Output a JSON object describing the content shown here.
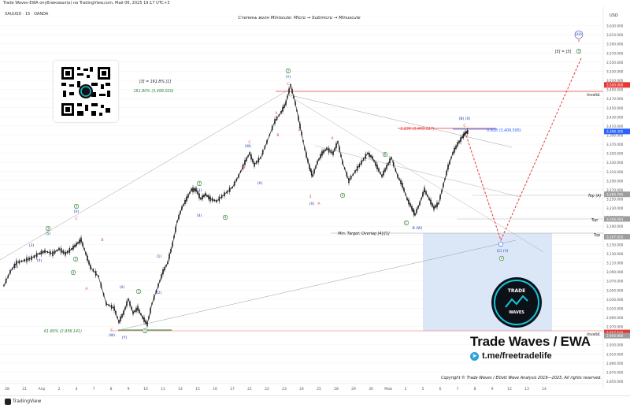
{
  "header": {
    "info": "Trade Waves-EWA опубликовал(а) на TradingView.com, Май 06, 2025 19:17 UTC+3",
    "symbol": "XAUUSD · 15 · OANDA",
    "currency": "USD"
  },
  "chart_title": "Степень волн Miniscule: Micro → Submicro → Minuscule",
  "chart_data": {
    "type": "line",
    "series": [
      {
        "values": [
          [
            0,
            3060
          ],
          [
            8,
            3090
          ],
          [
            16,
            3110
          ],
          [
            26,
            3115
          ],
          [
            35,
            3120
          ],
          [
            45,
            3130
          ],
          [
            52,
            3135
          ],
          [
            62,
            3130
          ],
          [
            70,
            3140
          ],
          [
            78,
            3130
          ],
          [
            86,
            3140
          ],
          [
            92,
            3150
          ],
          [
            98,
            3160
          ],
          [
            104,
            3130
          ],
          [
            110,
            3100
          ],
          [
            120,
            3080
          ],
          [
            130,
            3020
          ],
          [
            140,
            3010
          ],
          [
            146,
            2980
          ],
          [
            152,
            3000
          ],
          [
            158,
            3030
          ],
          [
            164,
            3000
          ],
          [
            170,
            3010
          ],
          [
            176,
            2990
          ],
          [
            182,
            2975
          ],
          [
            188,
            3020
          ],
          [
            196,
            3060
          ],
          [
            202,
            3090
          ],
          [
            208,
            3110
          ],
          [
            214,
            3150
          ],
          [
            220,
            3200
          ],
          [
            226,
            3230
          ],
          [
            232,
            3250
          ],
          [
            238,
            3270
          ],
          [
            244,
            3270
          ],
          [
            250,
            3250
          ],
          [
            256,
            3260
          ],
          [
            262,
            3250
          ],
          [
            270,
            3245
          ],
          [
            280,
            3260
          ],
          [
            290,
            3275
          ],
          [
            298,
            3300
          ],
          [
            306,
            3330
          ],
          [
            312,
            3350
          ],
          [
            318,
            3325
          ],
          [
            326,
            3340
          ],
          [
            334,
            3375
          ],
          [
            344,
            3420
          ],
          [
            352,
            3440
          ],
          [
            358,
            3460
          ],
          [
            364,
            3500
          ],
          [
            370,
            3460
          ],
          [
            376,
            3410
          ],
          [
            382,
            3360
          ],
          [
            388,
            3320
          ],
          [
            392,
            3300
          ],
          [
            398,
            3330
          ],
          [
            404,
            3350
          ],
          [
            410,
            3360
          ],
          [
            418,
            3350
          ],
          [
            424,
            3375
          ],
          [
            430,
            3330
          ],
          [
            438,
            3290
          ],
          [
            446,
            3310
          ],
          [
            454,
            3330
          ],
          [
            462,
            3350
          ],
          [
            468,
            3340
          ],
          [
            474,
            3320
          ],
          [
            480,
            3300
          ],
          [
            486,
            3320
          ],
          [
            492,
            3340
          ],
          [
            500,
            3300
          ],
          [
            506,
            3280
          ],
          [
            512,
            3250
          ],
          [
            518,
            3230
          ],
          [
            522,
            3215
          ],
          [
            528,
            3240
          ],
          [
            534,
            3270
          ],
          [
            540,
            3250
          ],
          [
            546,
            3230
          ],
          [
            552,
            3240
          ],
          [
            558,
            3280
          ],
          [
            564,
            3320
          ],
          [
            570,
            3350
          ],
          [
            576,
            3370
          ],
          [
            582,
            3385
          ],
          [
            586,
            3395
          ],
          [
            590,
            3398
          ]
        ]
      }
    ],
    "axis": {
      "y_ticks": [
        3650,
        3630,
        3610,
        3590,
        3570,
        3550,
        3530,
        3510,
        3490,
        3470,
        3450,
        3430,
        3410,
        3390,
        3370,
        3350,
        3330,
        3310,
        3290,
        3270,
        3250,
        3230,
        3210,
        3190,
        3170,
        3150,
        3130,
        3110,
        3090,
        3070,
        3050,
        3030,
        3010,
        2990,
        2970,
        2950,
        2930,
        2910,
        2890,
        2870,
        2850
      ],
      "y_tick_labels": [
        "3,650.000",
        "3,630.000",
        "3,610.000",
        "3,590.000",
        "3,570.000",
        "3,550.000",
        "3,530.000",
        "3,510.000",
        "3,490.000",
        "3,470.000",
        "3,450.000",
        "3,430.000",
        "3,410.000",
        "3,390.000",
        "3,370.000",
        "3,350.000",
        "3,330.000",
        "3,310.000",
        "3,290.000",
        "3,270.000",
        "3,250.000",
        "3,230.000",
        "3,210.000",
        "3,190.000",
        "3,170.000",
        "3,150.000",
        "3,130.000",
        "3,110.000",
        "3,090.000",
        "3,070.000",
        "3,050.000",
        "3,030.000",
        "3,010.000",
        "2,990.000",
        "2,970.000",
        "2,950.000",
        "2,930.000",
        "2,910.000",
        "2,890.000",
        "2,870.000",
        "2,850.000"
      ],
      "x_labels": [
        "28",
        "31",
        "Апр",
        "2",
        "4",
        "7",
        "8",
        "9",
        "10",
        "11",
        "14",
        "15",
        "16",
        "17",
        "21",
        "22",
        "23",
        "24",
        "25",
        "28",
        "29",
        "30",
        "Май",
        "2",
        "5",
        "6",
        "7",
        "8",
        "9",
        "12",
        "13",
        "14"
      ],
      "price_tags": [
        {
          "price": 3500,
          "text": "3,500.000",
          "color": "#e53935"
        },
        {
          "price": 3398,
          "text": "3,398.305",
          "color": "#2962ff"
        },
        {
          "price": 3260,
          "text": "3,260.765",
          "color": "#9e9e9e"
        },
        {
          "price": 3206,
          "text": "3,206.093",
          "color": "#9e9e9e"
        },
        {
          "price": 3167,
          "text": "3,167.025",
          "color": "#9e9e9e"
        },
        {
          "price": 2957,
          "text": "2,957.540",
          "color": "#e53935"
        },
        {
          "price": 2950,
          "text": "2,950.000",
          "color": "#9e9e9e"
        }
      ]
    },
    "annotations": [
      {
        "text": "[3] = 161.8% [1]",
        "color": "#222"
      },
      {
        "text": "161.80% (3,499.020)",
        "color": "#2e7d32"
      },
      {
        "text": "1.236 (3,409.117)",
        "color": "#e53935"
      },
      {
        "text": "0.618 (3,406.595)",
        "color": "#2962ff"
      },
      {
        "text": "Min. Target: Overlap [4]/[1]",
        "color": "#222"
      },
      {
        "text": "61.80% (2,956.141)",
        "color": "#2e7d32"
      },
      {
        "text": "[5] = [3]",
        "color": "#222"
      },
      {
        "text": "Invalid.",
        "color": "#222"
      },
      {
        "text": "Top (A)",
        "color": "#222"
      },
      {
        "text": "Top",
        "color": "#222"
      }
    ]
  },
  "branding": {
    "name": "Trade Waves / EWA",
    "telegram": "t.me/freetradelife",
    "copyright": "Copyright © Trade Waves / Elliott Wave Analysis 2016—2025. All rights reserved.",
    "badge_top": "TRADE",
    "badge_bottom": "WAVES"
  },
  "footer": {
    "label": "TradingView"
  },
  "colors": {
    "candle": "#222222",
    "wave_green": "#2e7d32",
    "wave_blue": "#1e40af",
    "wave_red": "#e53935",
    "target_box": "#dbe6f7",
    "projection": "#e53935"
  }
}
